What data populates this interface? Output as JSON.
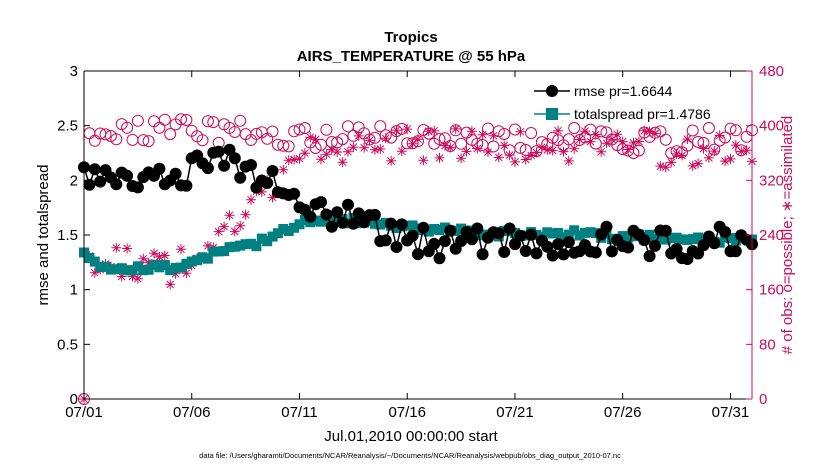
{
  "chart_data": {
    "type": "line",
    "title": "Tropics",
    "subtitle": "AIRS_TEMPERATURE @ 55 hPa",
    "xlabel": "Jul.01,2010 00:00:00 start",
    "ylabel_left": "rmse and totalspread",
    "ylabel_right": "# of obs: o=possible; ∗=assimilated",
    "x_range": [
      1,
      32
    ],
    "x_ticks": [
      1,
      6,
      11,
      16,
      21,
      26,
      31
    ],
    "x_tick_labels": [
      "07/01",
      "07/06",
      "07/11",
      "07/16",
      "07/21",
      "07/26",
      "07/31"
    ],
    "ylim_left": [
      0,
      3
    ],
    "y_ticks_left": [
      "0",
      "0.5",
      "1",
      "1.5",
      "2",
      "2.5",
      "3"
    ],
    "ylim_right": [
      0,
      480
    ],
    "y_ticks_right": [
      "0",
      "80",
      "160",
      "240",
      "320",
      "400",
      "480"
    ],
    "grid": false,
    "legend_position": "top-right",
    "footnote": "data file: /Users/gharamti/Documents/NCAR/Reanalysis/~/Documents/NCAR/Reanalysis/webpub/obs_diag_output_2010-07.nc",
    "colors": {
      "rmse": "#000000",
      "totalspread": "#008080",
      "obs": "#cc0c5c",
      "axis_right": "#cc0c5c"
    },
    "series": [
      {
        "name": "rmse pr=1.6644",
        "axis": "left",
        "marker": "circle",
        "anchors": [
          [
            1,
            2.0
          ],
          [
            3,
            1.95
          ],
          [
            4,
            1.95
          ],
          [
            5,
            2.05
          ],
          [
            6,
            2.1
          ],
          [
            7,
            2.15
          ],
          [
            8,
            2.2
          ],
          [
            9,
            2.0
          ],
          [
            10,
            1.95
          ],
          [
            11,
            1.8
          ],
          [
            12,
            1.72
          ],
          [
            13,
            1.65
          ],
          [
            14,
            1.6
          ],
          [
            15,
            1.5
          ],
          [
            16,
            1.45
          ],
          [
            17,
            1.42
          ],
          [
            18,
            1.42
          ],
          [
            19,
            1.42
          ],
          [
            20,
            1.42
          ],
          [
            21,
            1.45
          ],
          [
            22,
            1.45
          ],
          [
            23,
            1.42
          ],
          [
            24,
            1.45
          ],
          [
            25,
            1.45
          ],
          [
            26,
            1.45
          ],
          [
            27,
            1.42
          ],
          [
            28,
            1.4
          ],
          [
            29,
            1.42
          ],
          [
            30,
            1.45
          ],
          [
            31,
            1.48
          ],
          [
            32,
            1.45
          ]
        ],
        "noise": 0.14,
        "start_value": 2.12,
        "samples_per_day": 4
      },
      {
        "name": "totalspread pr=1.4786",
        "axis": "left",
        "marker": "square",
        "anchors": [
          [
            1,
            1.32
          ],
          [
            2,
            1.2
          ],
          [
            3,
            1.2
          ],
          [
            4,
            1.2
          ],
          [
            5,
            1.2
          ],
          [
            6,
            1.25
          ],
          [
            7,
            1.32
          ],
          [
            8,
            1.38
          ],
          [
            9,
            1.42
          ],
          [
            10,
            1.52
          ],
          [
            11,
            1.6
          ],
          [
            12,
            1.65
          ],
          [
            13,
            1.64
          ],
          [
            14,
            1.62
          ],
          [
            15,
            1.6
          ],
          [
            16,
            1.58
          ],
          [
            17,
            1.56
          ],
          [
            18,
            1.55
          ],
          [
            19,
            1.53
          ],
          [
            20,
            1.52
          ],
          [
            21,
            1.5
          ],
          [
            22,
            1.5
          ],
          [
            23,
            1.5
          ],
          [
            24,
            1.52
          ],
          [
            25,
            1.5
          ],
          [
            26,
            1.48
          ],
          [
            27,
            1.48
          ],
          [
            28,
            1.46
          ],
          [
            29,
            1.45
          ],
          [
            30,
            1.45
          ],
          [
            31,
            1.45
          ],
          [
            32,
            1.45
          ]
        ],
        "noise": 0.03,
        "start_value": 1.34,
        "samples_per_day": 4
      },
      {
        "name": "possible",
        "axis": "right",
        "marker": "open-circle",
        "anchors": [
          [
            1,
            382
          ],
          [
            4,
            392
          ],
          [
            8,
            392
          ],
          [
            11,
            385
          ],
          [
            14,
            385
          ],
          [
            18,
            380
          ],
          [
            22,
            380
          ],
          [
            25,
            378
          ],
          [
            28,
            375
          ],
          [
            30,
            382
          ],
          [
            32,
            380
          ]
        ],
        "noise": 18,
        "start_value": 0,
        "samples_per_day": 4
      },
      {
        "name": "assimilated",
        "axis": "right",
        "marker": "asterisk",
        "anchors": [
          [
            1,
            185
          ],
          [
            3,
            200
          ],
          [
            5,
            190
          ],
          [
            6,
            205
          ],
          [
            7,
            225
          ],
          [
            8,
            255
          ],
          [
            9,
            285
          ],
          [
            10,
            320
          ],
          [
            11,
            355
          ],
          [
            13,
            370
          ],
          [
            18,
            372
          ],
          [
            24,
            370
          ],
          [
            27,
            370
          ],
          [
            28,
            362
          ],
          [
            29,
            360
          ],
          [
            32,
            365
          ]
        ],
        "noise": 25,
        "start_value": 0,
        "samples_per_day": 4
      }
    ]
  }
}
